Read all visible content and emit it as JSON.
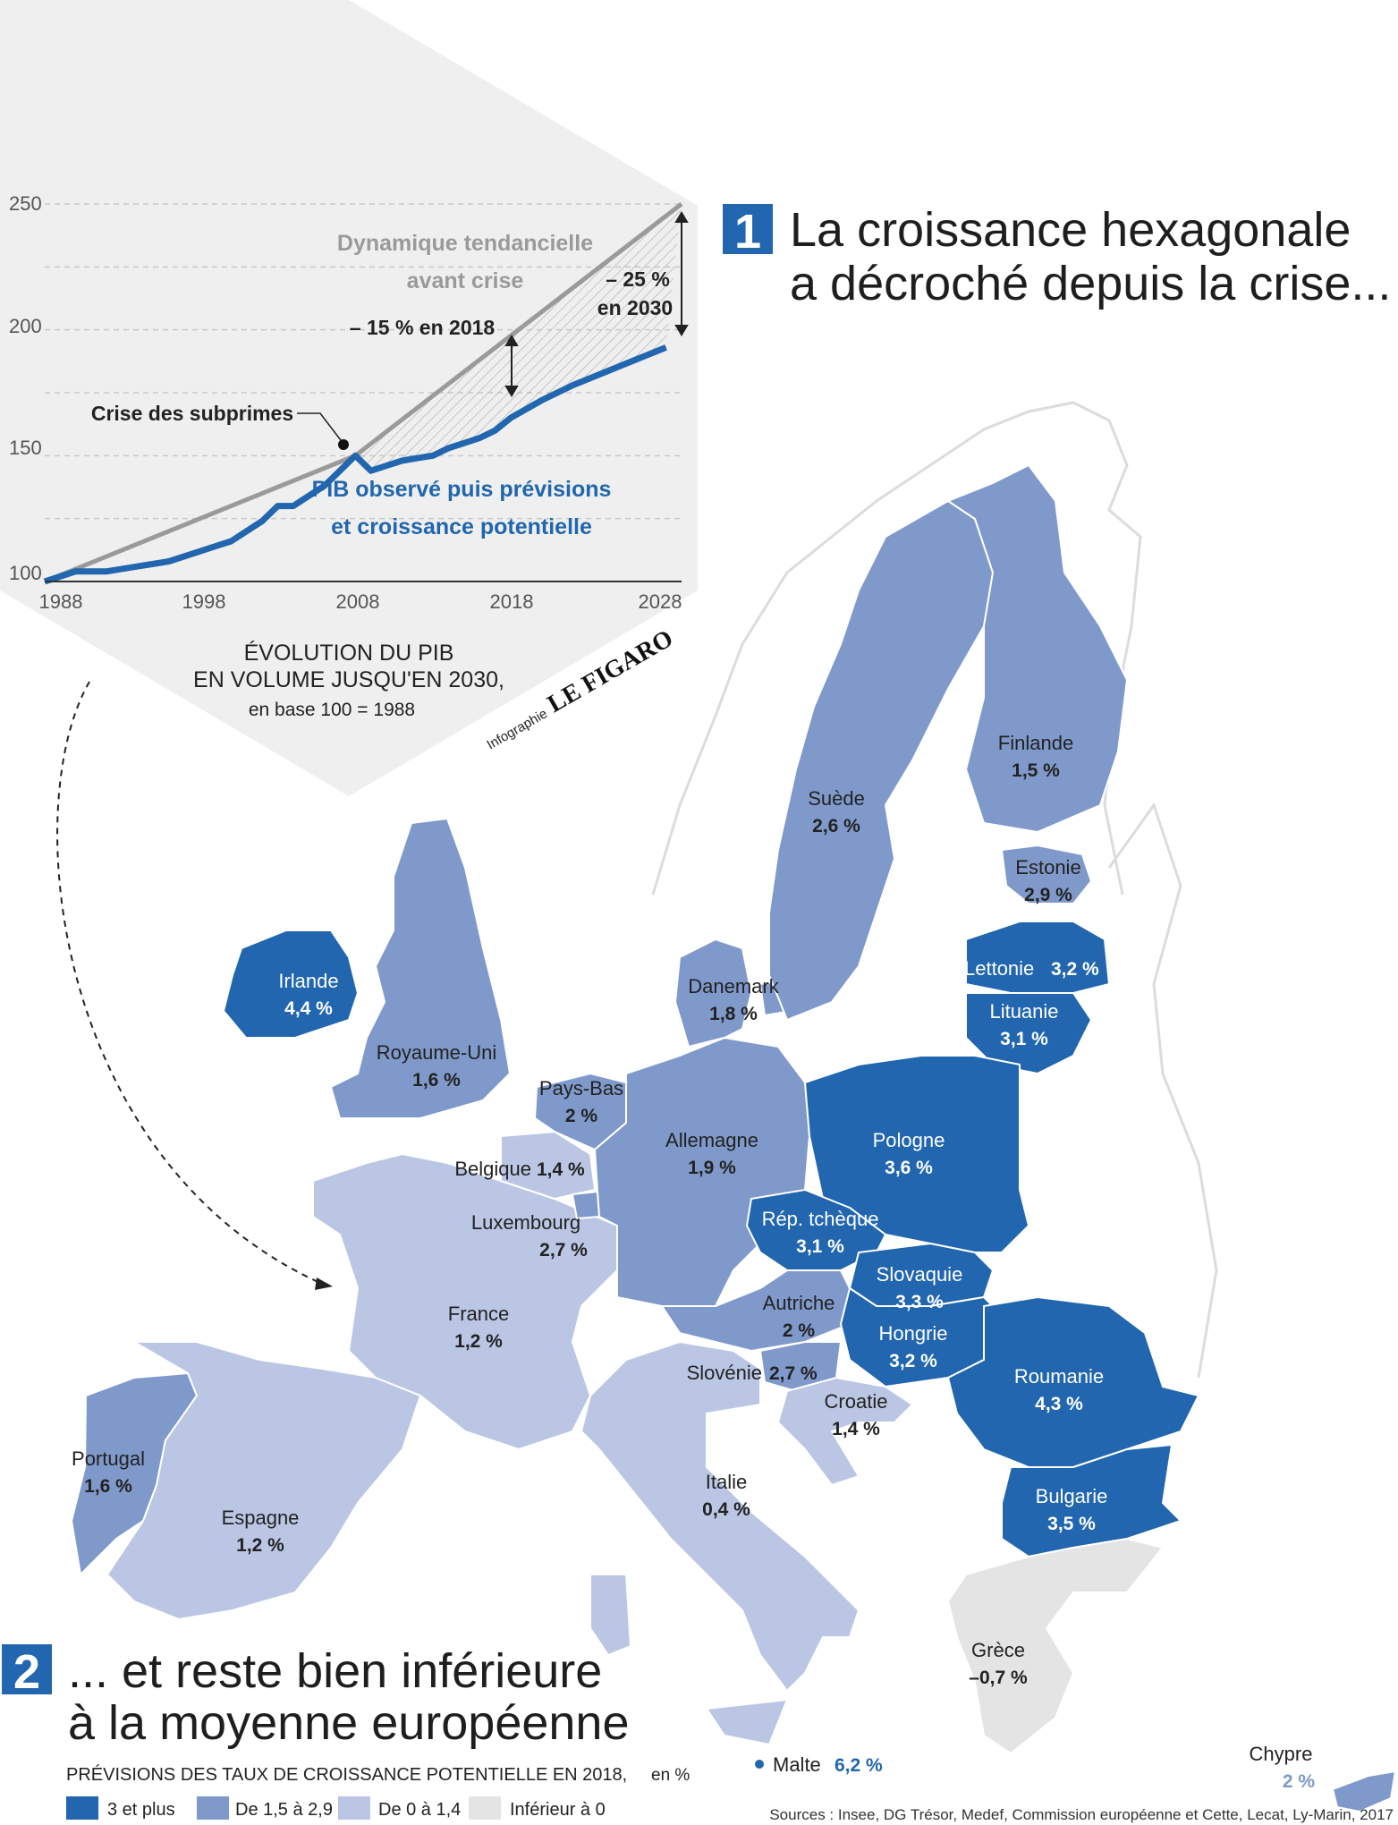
{
  "colors": {
    "cat1": "#2166ae",
    "cat2": "#7f99ca",
    "cat3": "#bac6e3",
    "cat4": "#e4e4e4",
    "accent": "#2166ae",
    "trend": "#9a9a9a"
  },
  "section1": {
    "number": "1",
    "title_line1": "La croissance hexagonale",
    "title_line2": "a décroché depuis la crise..."
  },
  "section2": {
    "number": "2",
    "title_line1": "... et reste bien inférieure",
    "title_line2": "à la moyenne européenne"
  },
  "chart_data": {
    "type": "line",
    "title_line1": "ÉVOLUTION DU PIB",
    "title_line2": "EN VOLUME JUSQU'EN 2030,",
    "subtitle": "en base 100 = 1988",
    "x_ticks": [
      "1988",
      "1998",
      "2008",
      "2018",
      "2028"
    ],
    "y_ticks": [
      "250",
      "200",
      "150",
      "100"
    ],
    "xlim": [
      1988,
      2029
    ],
    "ylim": [
      100,
      250
    ],
    "series": [
      {
        "name_line1": "PIB observé puis prévisions",
        "name_line2": "et croissance potentielle",
        "color": "#2166ae",
        "x": [
          1988,
          1990,
          1992,
          1994,
          1996,
          1998,
          1999,
          2000,
          2001,
          2002,
          2003,
          2004,
          2005,
          2006,
          2007,
          2008,
          2009,
          2010,
          2011,
          2012,
          2013,
          2014,
          2015,
          2016,
          2017,
          2018,
          2020,
          2022,
          2024,
          2026,
          2028
        ],
        "y": [
          100,
          104,
          104,
          106,
          108,
          112,
          114,
          116,
          120,
          124,
          130,
          130,
          134,
          138,
          144,
          150,
          144,
          146,
          148,
          149,
          150,
          153,
          155,
          157,
          160,
          165,
          172,
          178,
          183,
          188,
          193
        ]
      },
      {
        "name_line1": "Dynamique tendancielle",
        "name_line2": "avant crise",
        "color": "#9a9a9a",
        "x": [
          1988,
          2008,
          2029
        ],
        "y": [
          100,
          150,
          250
        ]
      }
    ],
    "annotations": {
      "crisis": "Crise des subprimes",
      "gap_2018": "– 15 % en 2018",
      "gap_2030_line1": "– 25 %",
      "gap_2030_line2": "en 2030"
    },
    "credit_prefix": "Infographie",
    "credit_brand": "LE FIGARO"
  },
  "map": {
    "countries": [
      {
        "id": "irlande",
        "name": "Irlande",
        "value": "4,4 %",
        "cat": 1
      },
      {
        "id": "royaume-uni",
        "name": "Royaume-Uni",
        "value": "1,6 %",
        "cat": 2
      },
      {
        "id": "suede",
        "name": "Suède",
        "value": "2,6 %",
        "cat": 2
      },
      {
        "id": "finlande",
        "name": "Finlande",
        "value": "1,5 %",
        "cat": 2
      },
      {
        "id": "estonie",
        "name": "Estonie",
        "value": "2,9 %",
        "cat": 2
      },
      {
        "id": "lettonie",
        "name": "Lettonie",
        "value": "3,2 %",
        "cat": 1
      },
      {
        "id": "lituanie",
        "name": "Lituanie",
        "value": "3,1 %",
        "cat": 1
      },
      {
        "id": "danemark",
        "name": "Danemark",
        "value": "1,8 %",
        "cat": 2
      },
      {
        "id": "pays-bas",
        "name": "Pays-Bas",
        "value": "2 %",
        "cat": 2
      },
      {
        "id": "belgique",
        "name": "Belgique",
        "value": "1,4 %",
        "cat": 3
      },
      {
        "id": "luxembourg",
        "name": "Luxembourg",
        "value": "2,7 %",
        "cat": 2
      },
      {
        "id": "allemagne",
        "name": "Allemagne",
        "value": "1,9 %",
        "cat": 2
      },
      {
        "id": "pologne",
        "name": "Pologne",
        "value": "3,6 %",
        "cat": 1
      },
      {
        "id": "rep-tcheque",
        "name": "Rép. tchèque",
        "value": "3,1 %",
        "cat": 1
      },
      {
        "id": "slovaquie",
        "name": "Slovaquie",
        "value": "3,3 %",
        "cat": 1
      },
      {
        "id": "autriche",
        "name": "Autriche",
        "value": "2 %",
        "cat": 2
      },
      {
        "id": "hongrie",
        "name": "Hongrie",
        "value": "3,2 %",
        "cat": 1
      },
      {
        "id": "france",
        "name": "France",
        "value": "1,2 %",
        "cat": 3
      },
      {
        "id": "slovenie",
        "name": "Slovénie",
        "value": "2,7 %",
        "cat": 2
      },
      {
        "id": "croatie",
        "name": "Croatie",
        "value": "1,4 %",
        "cat": 3
      },
      {
        "id": "roumanie",
        "name": "Roumanie",
        "value": "4,3 %",
        "cat": 1
      },
      {
        "id": "bulgarie",
        "name": "Bulgarie",
        "value": "3,5 %",
        "cat": 1
      },
      {
        "id": "portugal",
        "name": "Portugal",
        "value": "1,6 %",
        "cat": 2
      },
      {
        "id": "espagne",
        "name": "Espagne",
        "value": "1,2 %",
        "cat": 3
      },
      {
        "id": "italie",
        "name": "Italie",
        "value": "0,4 %",
        "cat": 3
      },
      {
        "id": "grece",
        "name": "Grèce",
        "value": "–0,7 %",
        "cat": 4
      },
      {
        "id": "malte",
        "name": "Malte",
        "value": "6,2 %",
        "cat": 1
      },
      {
        "id": "chypre",
        "name": "Chypre",
        "value": "2 %",
        "cat": 2
      }
    ]
  },
  "legend": {
    "title": "PRÉVISIONS DES TAUX DE CROISSANCE POTENTIELLE EN 2018,",
    "unit": "en %",
    "items": [
      {
        "label": "3 et plus",
        "cat": 1
      },
      {
        "label": "De 1,5 à 2,9",
        "cat": 2
      },
      {
        "label": "De 0 à 1,4",
        "cat": 3
      },
      {
        "label": "Inférieur à 0",
        "cat": 4
      }
    ]
  },
  "sources": "Sources : Insee, DG Trésor, Medef, Commission européenne et Cette, Lecat, Ly-Marin, 2017"
}
